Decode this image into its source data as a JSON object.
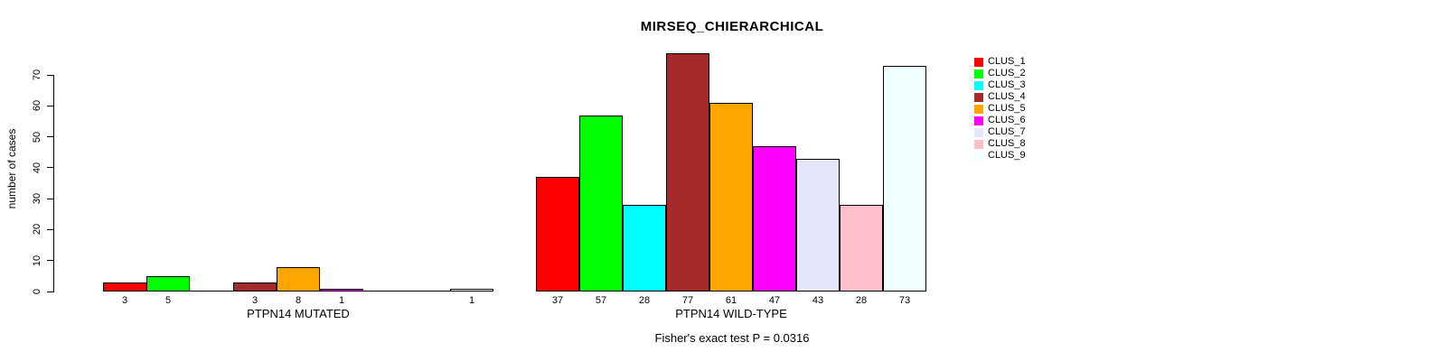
{
  "title": "MIRSEQ_CHIERARCHICAL",
  "y_axis": {
    "label": "number of cases",
    "ticks": [
      0,
      10,
      20,
      30,
      40,
      50,
      60,
      70
    ]
  },
  "footer": {
    "text": "Fisher's exact test P = 0.0316"
  },
  "legend": {
    "position": "right",
    "items": [
      {
        "label": "CLUS_1",
        "color": "#FF0000"
      },
      {
        "label": "CLUS_2",
        "color": "#00FF00"
      },
      {
        "label": "CLUS_3",
        "color": "#00FFFF"
      },
      {
        "label": "CLUS_4",
        "color": "#A52A2A"
      },
      {
        "label": "CLUS_5",
        "color": "#FFA500"
      },
      {
        "label": "CLUS_6",
        "color": "#FF00FF"
      },
      {
        "label": "CLUS_7",
        "color": "#E6E6FA"
      },
      {
        "label": "CLUS_8",
        "color": "#FFC0CB"
      },
      {
        "label": "CLUS_9",
        "color": "#F0FFFF"
      }
    ]
  },
  "chart_data": {
    "type": "bar",
    "title": "MIRSEQ_CHIERARCHICAL",
    "xlabel": "",
    "ylabel": "number of cases",
    "ylim": [
      0,
      78
    ],
    "yticks": [
      0,
      10,
      20,
      30,
      40,
      50,
      60,
      70
    ],
    "grid": false,
    "legend_position": "right",
    "categories": [
      "CLUS_1",
      "CLUS_2",
      "CLUS_3",
      "CLUS_4",
      "CLUS_5",
      "CLUS_6",
      "CLUS_7",
      "CLUS_8",
      "CLUS_9"
    ],
    "colors": [
      "#FF0000",
      "#00FF00",
      "#00FFFF",
      "#A52A2A",
      "#FFA500",
      "#FF00FF",
      "#E6E6FA",
      "#FFC0CB",
      "#F0FFFF"
    ],
    "groups": [
      {
        "label": "PTPN14 MUTATED",
        "values": [
          3,
          5,
          0,
          3,
          8,
          1,
          0,
          0,
          1
        ]
      },
      {
        "label": "PTPN14 WILD-TYPE",
        "values": [
          37,
          57,
          28,
          77,
          61,
          47,
          43,
          28,
          73
        ]
      }
    ],
    "bar_value_labels_shown_only_when_nonzero": true,
    "annotation": "Fisher's exact test P = 0.0316"
  }
}
